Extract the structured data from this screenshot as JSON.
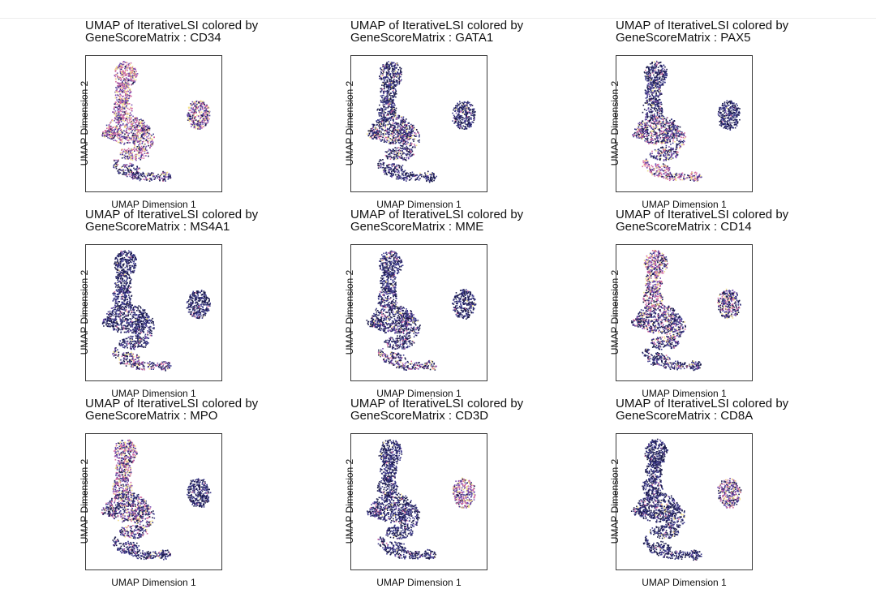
{
  "chart_data": [
    {
      "type": "scatter",
      "title_line1": "UMAP of IterativeLSI colored by",
      "title_line2": "GeneScoreMatrix : CD34",
      "xlabel": "UMAP Dimension 1",
      "ylabel": "UMAP Dimension 2",
      "gene": "CD34",
      "expression": {
        "top_cluster": 0.85,
        "mid_cluster": 0.75,
        "right_cluster": 0.7,
        "bottom_cluster": 0.3
      }
    },
    {
      "type": "scatter",
      "title_line1": "UMAP of IterativeLSI colored by",
      "title_line2": "GeneScoreMatrix : GATA1",
      "xlabel": "UMAP Dimension 1",
      "ylabel": "UMAP Dimension 2",
      "gene": "GATA1",
      "expression": {
        "top_cluster": 0.1,
        "mid_cluster": 0.3,
        "right_cluster": 0.05,
        "bottom_cluster": 0.1
      }
    },
    {
      "type": "scatter",
      "title_line1": "UMAP of IterativeLSI colored by",
      "title_line2": "GeneScoreMatrix : PAX5",
      "xlabel": "UMAP Dimension 1",
      "ylabel": "UMAP Dimension 2",
      "gene": "PAX5",
      "expression": {
        "top_cluster": 0.15,
        "mid_cluster": 0.45,
        "right_cluster": 0.05,
        "bottom_cluster": 0.75
      }
    },
    {
      "type": "scatter",
      "title_line1": "UMAP of IterativeLSI colored by",
      "title_line2": "GeneScoreMatrix : MS4A1",
      "xlabel": "UMAP Dimension 1",
      "ylabel": "UMAP Dimension 2",
      "gene": "MS4A1",
      "expression": {
        "top_cluster": 0.05,
        "mid_cluster": 0.1,
        "right_cluster": 0.05,
        "bottom_cluster": 0.45
      }
    },
    {
      "type": "scatter",
      "title_line1": "UMAP of IterativeLSI colored by",
      "title_line2": "GeneScoreMatrix : MME",
      "xlabel": "UMAP Dimension 1",
      "ylabel": "UMAP Dimension 2",
      "gene": "MME",
      "expression": {
        "top_cluster": 0.1,
        "mid_cluster": 0.2,
        "right_cluster": 0.05,
        "bottom_cluster": 0.45
      }
    },
    {
      "type": "scatter",
      "title_line1": "UMAP of IterativeLSI colored by",
      "title_line2": "GeneScoreMatrix : CD14",
      "xlabel": "UMAP Dimension 1",
      "ylabel": "UMAP Dimension 2",
      "gene": "CD14",
      "expression": {
        "top_cluster": 0.7,
        "mid_cluster": 0.35,
        "right_cluster": 0.4,
        "bottom_cluster": 0.2
      }
    },
    {
      "type": "scatter",
      "title_line1": "UMAP of IterativeLSI colored by",
      "title_line2": "GeneScoreMatrix : MPO",
      "xlabel": "UMAP Dimension 1",
      "ylabel": "UMAP Dimension 2",
      "gene": "MPO",
      "expression": {
        "top_cluster": 0.7,
        "mid_cluster": 0.4,
        "right_cluster": 0.05,
        "bottom_cluster": 0.15
      }
    },
    {
      "type": "scatter",
      "title_line1": "UMAP of IterativeLSI colored by",
      "title_line2": "GeneScoreMatrix : CD3D",
      "xlabel": "UMAP Dimension 1",
      "ylabel": "UMAP Dimension 2",
      "gene": "CD3D",
      "expression": {
        "top_cluster": 0.05,
        "mid_cluster": 0.1,
        "right_cluster": 0.75,
        "bottom_cluster": 0.1
      }
    },
    {
      "type": "scatter",
      "title_line1": "UMAP of IterativeLSI colored by",
      "title_line2": "GeneScoreMatrix : CD8A",
      "xlabel": "UMAP Dimension 1",
      "ylabel": "UMAP Dimension 2",
      "gene": "CD8A",
      "expression": {
        "top_cluster": 0.05,
        "mid_cluster": 0.1,
        "right_cluster": 0.6,
        "bottom_cluster": 0.05
      }
    }
  ],
  "colors": {
    "low": "#1a1a4a",
    "mid_low": "#3c3a8a",
    "mid": "#7a4fb0",
    "mid_high": "#d16aa0",
    "high": "#f2e08a"
  }
}
